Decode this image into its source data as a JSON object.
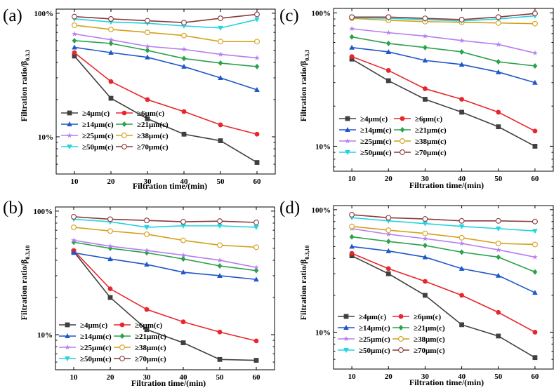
{
  "chart_data": [
    {
      "id": "a",
      "panel_label": "(a)",
      "type": "line",
      "title": "",
      "xlabel": "Filtration time/(min)",
      "ylabel": "Filtration ratio/β",
      "ylabel_subscript": "0.3,3",
      "yscale": "log",
      "ylim": [
        0.05,
        1.08
      ],
      "xlim": [
        5,
        65
      ],
      "x": [
        10,
        20,
        30,
        40,
        50,
        60
      ],
      "xticks": [
        "10",
        "20",
        "30",
        "40",
        "50",
        "60"
      ],
      "yticks": [
        {
          "value": 0.1,
          "label": "10%"
        },
        {
          "value": 1.0,
          "label": "100%"
        }
      ],
      "legend_position": "bottom-left",
      "series": [
        {
          "name": "≥4μm(c)",
          "color": "#404040",
          "marker": "square",
          "values": [
            0.45,
            0.205,
            0.14,
            0.105,
            0.093,
            0.062
          ]
        },
        {
          "name": "≥6μm(c)",
          "color": "#e8262b",
          "marker": "circle",
          "values": [
            0.48,
            0.28,
            0.2,
            0.16,
            0.125,
            0.105
          ]
        },
        {
          "name": "≥14μm(c)",
          "color": "#1f56c9",
          "marker": "triangle",
          "values": [
            0.53,
            0.48,
            0.44,
            0.37,
            0.3,
            0.24
          ]
        },
        {
          "name": "≥21μm(c)",
          "color": "#2aa14b",
          "marker": "diamond",
          "values": [
            0.6,
            0.57,
            0.5,
            0.43,
            0.395,
            0.37
          ]
        },
        {
          "name": "≥25μm(c)",
          "color": "#b57ef0",
          "marker": "star",
          "values": [
            0.68,
            0.61,
            0.54,
            0.51,
            0.465,
            0.435
          ]
        },
        {
          "name": "≥38μm(c)",
          "color": "#d4a017",
          "marker": "hexagon",
          "values": [
            0.8,
            0.74,
            0.7,
            0.66,
            0.59,
            0.59
          ]
        },
        {
          "name": "≥50μm(c)",
          "color": "#22d3e0",
          "marker": "tri-down",
          "values": [
            0.9,
            0.85,
            0.83,
            0.79,
            0.76,
            0.89
          ]
        },
        {
          "name": "≥70μm(c)",
          "color": "#8b3a3a",
          "marker": "pentagon",
          "values": [
            0.94,
            0.9,
            0.87,
            0.84,
            0.91,
            0.98
          ]
        }
      ]
    },
    {
      "id": "c",
      "panel_label": "(c)",
      "type": "line",
      "title": "",
      "xlabel": "Filtration time/(min)",
      "ylabel": "Filtration ratio/β",
      "ylabel_subscript": "0.3,3",
      "yscale": "log",
      "ylim": [
        0.065,
        1.08
      ],
      "xlim": [
        5,
        65
      ],
      "x": [
        10,
        20,
        30,
        40,
        50,
        60
      ],
      "xticks": [
        "10",
        "20",
        "30",
        "40",
        "50",
        "60"
      ],
      "yticks": [
        {
          "value": 0.1,
          "label": "10%"
        },
        {
          "value": 1.0,
          "label": "100%"
        }
      ],
      "legend_position": "bottom-left",
      "series": [
        {
          "name": "≥4μm(c)",
          "color": "#404040",
          "marker": "square",
          "values": [
            0.45,
            0.31,
            0.225,
            0.18,
            0.14,
            0.1
          ]
        },
        {
          "name": "≥6μm(c)",
          "color": "#e8262b",
          "marker": "circle",
          "values": [
            0.47,
            0.37,
            0.27,
            0.225,
            0.18,
            0.13
          ]
        },
        {
          "name": "≥14μm(c)",
          "color": "#1f56c9",
          "marker": "triangle",
          "values": [
            0.55,
            0.51,
            0.44,
            0.41,
            0.36,
            0.3
          ]
        },
        {
          "name": "≥21μm(c)",
          "color": "#2aa14b",
          "marker": "diamond",
          "values": [
            0.66,
            0.59,
            0.55,
            0.51,
            0.43,
            0.4
          ]
        },
        {
          "name": "≥25μm(c)",
          "color": "#b57ef0",
          "marker": "star",
          "values": [
            0.76,
            0.71,
            0.67,
            0.62,
            0.58,
            0.5
          ]
        },
        {
          "name": "≥38μm(c)",
          "color": "#d4a017",
          "marker": "hexagon",
          "values": [
            0.91,
            0.88,
            0.86,
            0.85,
            0.84,
            0.83
          ]
        },
        {
          "name": "≥50μm(c)",
          "color": "#22d3e0",
          "marker": "tri-down",
          "values": [
            0.92,
            0.91,
            0.89,
            0.87,
            0.9,
            0.95
          ]
        },
        {
          "name": "≥70μm(c)",
          "color": "#8b3a3a",
          "marker": "pentagon",
          "values": [
            0.93,
            0.93,
            0.91,
            0.89,
            0.93,
            0.99
          ]
        }
      ]
    },
    {
      "id": "b",
      "panel_label": "(b)",
      "type": "line",
      "title": "",
      "xlabel": "Filtration time/(min)",
      "ylabel": "Filtration ratio/β",
      "ylabel_subscript": "0.3,10",
      "yscale": "log",
      "ylim": [
        0.052,
        1.08
      ],
      "xlim": [
        5,
        65
      ],
      "x": [
        10,
        20,
        30,
        40,
        50,
        60
      ],
      "xticks": [
        "10",
        "20",
        "30",
        "40",
        "50",
        "60"
      ],
      "yticks": [
        {
          "value": 0.1,
          "label": "10%"
        },
        {
          "value": 1.0,
          "label": "100%"
        }
      ],
      "legend_position": "bottom-left",
      "series": [
        {
          "name": "≥4μm(c)",
          "color": "#404040",
          "marker": "square",
          "values": [
            0.47,
            0.2,
            0.11,
            0.086,
            0.063,
            0.062
          ]
        },
        {
          "name": "≥6μm(c)",
          "color": "#e8262b",
          "marker": "circle",
          "values": [
            0.48,
            0.235,
            0.16,
            0.127,
            0.105,
            0.089
          ]
        },
        {
          "name": "≥14μm(c)",
          "color": "#1f56c9",
          "marker": "triangle",
          "values": [
            0.46,
            0.41,
            0.37,
            0.32,
            0.3,
            0.28
          ]
        },
        {
          "name": "≥21μm(c)",
          "color": "#2aa14b",
          "marker": "diamond",
          "values": [
            0.56,
            0.5,
            0.46,
            0.41,
            0.36,
            0.33
          ]
        },
        {
          "name": "≥25μm(c)",
          "color": "#b57ef0",
          "marker": "star",
          "values": [
            0.58,
            0.52,
            0.48,
            0.44,
            0.4,
            0.35
          ]
        },
        {
          "name": "≥38μm(c)",
          "color": "#d4a017",
          "marker": "hexagon",
          "values": [
            0.74,
            0.69,
            0.65,
            0.58,
            0.53,
            0.51
          ]
        },
        {
          "name": "≥50μm(c)",
          "color": "#22d3e0",
          "marker": "tri-down",
          "values": [
            0.86,
            0.82,
            0.74,
            0.76,
            0.76,
            0.74
          ]
        },
        {
          "name": "≥70μm(c)",
          "color": "#8b3a3a",
          "marker": "pentagon",
          "values": [
            0.9,
            0.86,
            0.84,
            0.82,
            0.83,
            0.81
          ]
        }
      ]
    },
    {
      "id": "d",
      "panel_label": "(d)",
      "type": "line",
      "title": "",
      "xlabel": "Filtration time/(min)",
      "ylabel": "Filtration ratio/β",
      "ylabel_subscript": "0.3,10",
      "yscale": "log",
      "ylim": [
        0.05,
        1.08
      ],
      "xlim": [
        5,
        65
      ],
      "x": [
        10,
        20,
        30,
        40,
        50,
        60
      ],
      "xticks": [
        "10",
        "20",
        "30",
        "40",
        "50",
        "60"
      ],
      "yticks": [
        {
          "value": 0.1,
          "label": "10%"
        },
        {
          "value": 1.0,
          "label": "100%"
        }
      ],
      "legend_position": "bottom-left",
      "series": [
        {
          "name": "≥4μm(c)",
          "color": "#404040",
          "marker": "square",
          "values": [
            0.42,
            0.3,
            0.2,
            0.115,
            0.093,
            0.062
          ]
        },
        {
          "name": "≥6μm(c)",
          "color": "#e8262b",
          "marker": "circle",
          "values": [
            0.44,
            0.33,
            0.26,
            0.2,
            0.145,
            0.1
          ]
        },
        {
          "name": "≥14μm(c)",
          "color": "#1f56c9",
          "marker": "triangle",
          "values": [
            0.5,
            0.46,
            0.41,
            0.33,
            0.29,
            0.21
          ]
        },
        {
          "name": "≥21μm(c)",
          "color": "#2aa14b",
          "marker": "diamond",
          "values": [
            0.6,
            0.55,
            0.51,
            0.45,
            0.41,
            0.31
          ]
        },
        {
          "name": "≥25μm(c)",
          "color": "#b57ef0",
          "marker": "star",
          "values": [
            0.7,
            0.63,
            0.58,
            0.53,
            0.47,
            0.41
          ]
        },
        {
          "name": "≥38μm(c)",
          "color": "#d4a017",
          "marker": "hexagon",
          "values": [
            0.73,
            0.68,
            0.64,
            0.59,
            0.53,
            0.52
          ]
        },
        {
          "name": "≥50μm(c)",
          "color": "#22d3e0",
          "marker": "tri-down",
          "values": [
            0.86,
            0.81,
            0.77,
            0.73,
            0.7,
            0.67
          ]
        },
        {
          "name": "≥70μm(c)",
          "color": "#8b3a3a",
          "marker": "pentagon",
          "values": [
            0.91,
            0.86,
            0.84,
            0.81,
            0.81,
            0.8
          ]
        }
      ]
    }
  ]
}
